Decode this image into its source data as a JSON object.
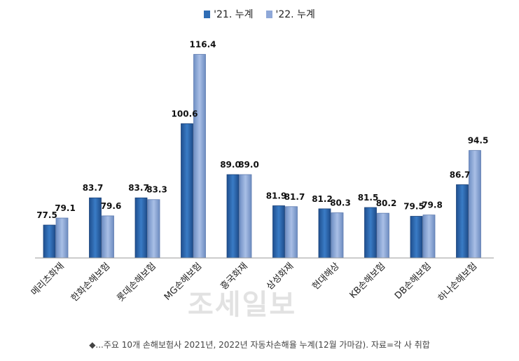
{
  "chart_data": {
    "type": "bar",
    "categories": [
      "메리츠화재",
      "한화손해보험",
      "롯데손해보험",
      "MG손해보험",
      "흥국화재",
      "삼성화재",
      "현대해상",
      "KB손해보험",
      "DB손해보험",
      "하나손해보험"
    ],
    "series": [
      {
        "name": "'21. 누계",
        "values": [
          77.5,
          83.7,
          83.7,
          100.6,
          89.0,
          81.9,
          81.2,
          81.5,
          79.5,
          86.7
        ],
        "color": "#2f6db5"
      },
      {
        "name": "'22. 누계",
        "values": [
          79.1,
          79.6,
          83.3,
          116.4,
          89.0,
          81.7,
          80.3,
          80.2,
          79.8,
          94.5
        ],
        "color": "#8fa8d8"
      }
    ],
    "value_labels": [
      [
        "77.5",
        "79.1"
      ],
      [
        "83.7",
        "79.6"
      ],
      [
        "83.7",
        "83.3"
      ],
      [
        "100.6",
        "116.4"
      ],
      [
        "89.0",
        "89.0"
      ],
      [
        "81.9",
        "81.7"
      ],
      [
        "81.2",
        "80.3"
      ],
      [
        "81.5",
        "80.2"
      ],
      [
        "79.5",
        "79.8"
      ],
      [
        "86.7",
        "94.5"
      ]
    ],
    "ylim": [
      70,
      120
    ],
    "legend": "top-center",
    "grid": false
  },
  "caption": "◆...주요 10개 손해보험사 2021년, 2022년 자동차손해율 누계(12월 가마감). 자료=각 사 취합",
  "watermark": "조세일보"
}
